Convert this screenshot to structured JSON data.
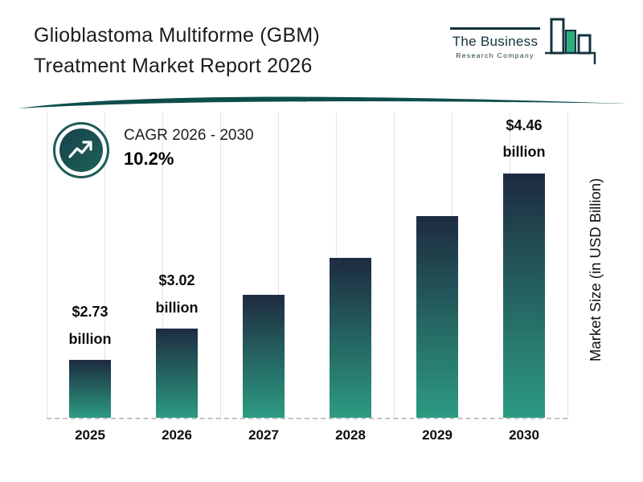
{
  "header": {
    "title_line1": "Glioblastoma Multiforme (GBM)",
    "title_line2": "Treatment Market Report 2026"
  },
  "logo": {
    "line1": "The Business",
    "line2": "Research Company"
  },
  "cagr_badge": {
    "label": "CAGR 2026 - 2030",
    "value": "10.2%"
  },
  "chart_data": {
    "type": "bar",
    "title": "Glioblastoma Multiforme (GBM) Treatment Market Report 2026",
    "categories": [
      "2025",
      "2026",
      "2027",
      "2028",
      "2029",
      "2030"
    ],
    "values": [
      2.73,
      3.02,
      3.33,
      3.67,
      4.05,
      4.46
    ],
    "bar_labels": [
      {
        "amount": "$2.73",
        "unit": "billion"
      },
      {
        "amount": "$3.02",
        "unit": "billion"
      },
      null,
      null,
      null,
      {
        "amount": "$4.46",
        "unit": "billion"
      }
    ],
    "xlabel": "",
    "ylabel": "Market Size (in USD Billion)",
    "ylim": [
      2.2,
      5.0
    ],
    "grid": "vertical",
    "legend": "none",
    "colors": {
      "bar_gradient_top": "#1d2b3f",
      "bar_gradient_bottom": "#2c9b82",
      "accent_teal": "#0d4d4b",
      "logo_green": "#2eae7d"
    }
  }
}
